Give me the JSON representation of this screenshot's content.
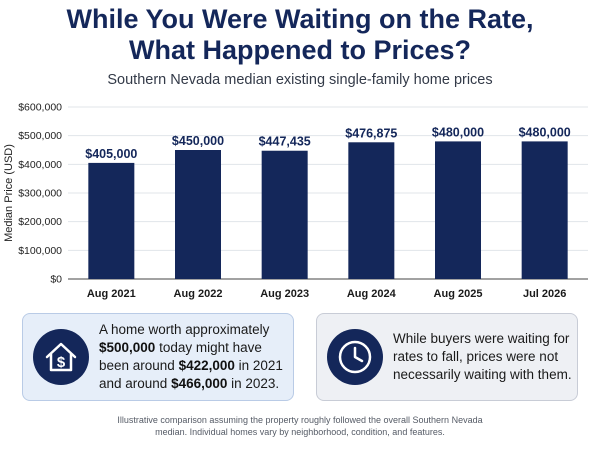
{
  "header": {
    "title_line1": "While You Were Waiting on the Rate,",
    "title_line2": "What Happened to Prices?",
    "subtitle": "Southern Nevada median existing single-family home prices"
  },
  "chart_data": {
    "type": "bar",
    "categories": [
      "Aug 2021",
      "Aug 2022",
      "Aug 2023",
      "Aug 2024",
      "Aug 2025",
      "Jul 2026"
    ],
    "values": [
      405000,
      450000,
      447435,
      476875,
      480000,
      480000
    ],
    "value_labels": [
      "$405,000",
      "$450,000",
      "$447,435",
      "$476,875",
      "$480,000",
      "$480,000"
    ],
    "ylabel": "Median Price (USD)",
    "ylim": [
      0,
      600000
    ],
    "yticks": [
      0,
      100000,
      200000,
      300000,
      400000,
      500000,
      600000
    ],
    "ytick_labels": [
      "$0",
      "$100,000",
      "$200,000",
      "$300,000",
      "$400,000",
      "$500,000",
      "$600,000"
    ],
    "bar_color": "#14275a",
    "grid": true
  },
  "cards": {
    "left": {
      "icon": "house-dollar-icon",
      "t1": "A home worth approximately ",
      "b1": "$500,000",
      "t2": " today might have been around ",
      "b2": "$422,000",
      "t3": " in 2021 and around ",
      "b3": "$466,000",
      "t4": " in 2023."
    },
    "right": {
      "icon": "clock-icon",
      "text": "While buyers were waiting for rates to fall, prices were not necessarily waiting with them."
    }
  },
  "footnote": {
    "line1": "Illustrative comparison assuming the property roughly followed the overall Southern Nevada",
    "line2": "median. Individual homes vary by neighborhood, condition, and features."
  },
  "colors": {
    "navy": "#14275a",
    "card_left_bg": "#e6eef9",
    "card_right_bg": "#eef0f4"
  }
}
